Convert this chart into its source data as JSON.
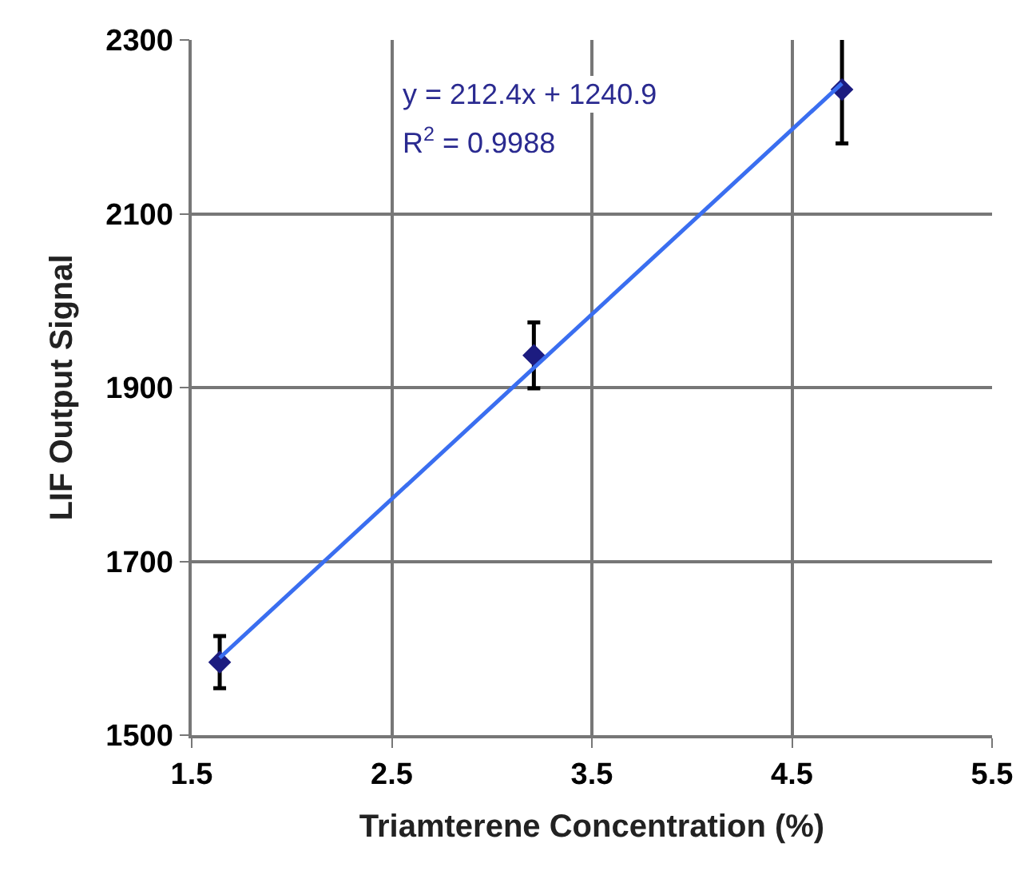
{
  "chart_data": {
    "type": "scatter",
    "xlabel": "Triamterene Concentration (%)",
    "ylabel": "LIF Output Signal",
    "annotations": [
      "y = 212.4x + 1240.9",
      "R$^{2}$ = 0.9988"
    ],
    "series": [
      {
        "color": "#1c1c80",
        "x": [
          1.64,
          3.21,
          4.75
        ],
        "values": [
          1584,
          1937,
          2243
        ],
        "errors": [
          30,
          38,
          62
        ],
        "marker": "diamond"
      },
      {
        "type": "line",
        "color": "#3a6ef0",
        "x": [
          1.64,
          4.75
        ],
        "values": [
          1589,
          2250
        ],
        "marker": "none",
        "line_style": "solid"
      }
    ],
    "xlim": [
      1.5,
      5.5
    ],
    "xticks": [
      1.5,
      2.5,
      3.5,
      4.5,
      5.5
    ],
    "ylim": [
      1500,
      2300
    ],
    "yticks": [
      1500,
      1700,
      1900,
      2100,
      2300
    ],
    "grid": true
  }
}
